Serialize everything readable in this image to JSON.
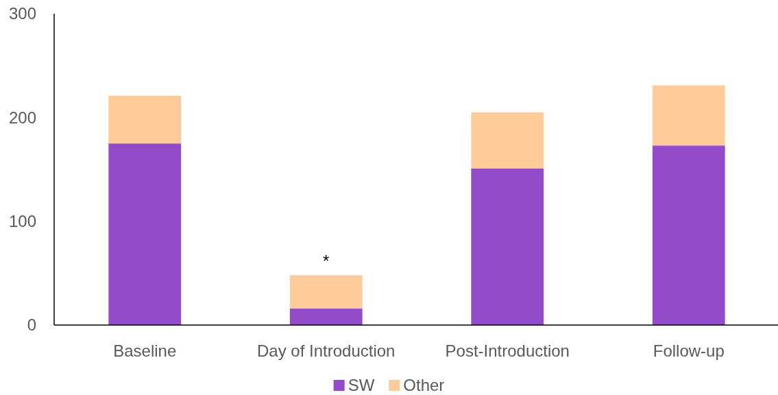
{
  "chart_data": {
    "type": "bar",
    "stacked": true,
    "categories": [
      "Baseline",
      "Day of Introduction",
      "Post-Introduction",
      "Follow-up"
    ],
    "series": [
      {
        "name": "SW",
        "color": "#934bc9",
        "values": [
          175,
          16,
          151,
          173
        ]
      },
      {
        "name": "Other",
        "color": "#fecb99",
        "values": [
          46,
          32,
          54,
          58
        ]
      }
    ],
    "ylim": [
      0,
      300
    ],
    "yticks": [
      0,
      100,
      200,
      300
    ],
    "grid": false,
    "legend": "bottom",
    "annotations": [
      {
        "text": "*",
        "x": "Day of Introduction",
        "y": 48
      }
    ]
  }
}
